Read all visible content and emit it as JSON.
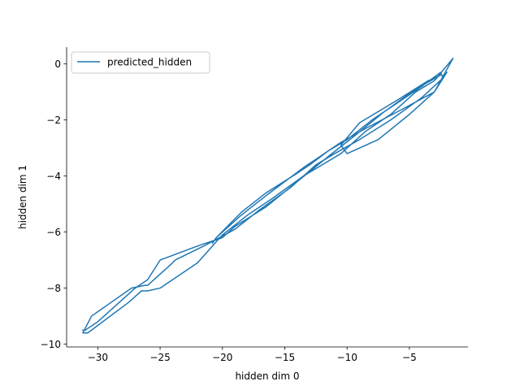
{
  "chart_data": {
    "type": "line",
    "title": "",
    "xlabel": "hidden dim 0",
    "ylabel": "hidden dim 1",
    "xlim": [
      -32.5,
      -0.3
    ],
    "ylim": [
      -10.1,
      0.6
    ],
    "xticks": [
      -30,
      -25,
      -20,
      -15,
      -10,
      -5
    ],
    "xtick_labels": [
      "−30",
      "−25",
      "−20",
      "−15",
      "−10",
      "−5"
    ],
    "yticks": [
      -10,
      -8,
      -6,
      -4,
      -2,
      0
    ],
    "ytick_labels": [
      "−10",
      "−8",
      "−6",
      "−4",
      "−2",
      "0"
    ],
    "grid": false,
    "legend_position": "upper-left",
    "series": [
      {
        "name": "predicted_hidden",
        "color": "#1f77b4",
        "x": [
          -2.0,
          -3.0,
          -5.5,
          -8.5,
          -10.5,
          -13.5,
          -16.5,
          -18.5,
          -20.5,
          -20.8,
          -20.5,
          -18.5,
          -16.5,
          -14.0,
          -13.0,
          -11.5,
          -10.0,
          -8.0,
          -6.0,
          -4.0,
          -2.5,
          -2.3,
          -4.0,
          -6.5,
          -9.0,
          -11.0,
          -12.5,
          -14.5,
          -17.0,
          -19.0,
          -21.5,
          -23.8,
          -24.0,
          -26.0,
          -26.2,
          -27.3,
          -30.5,
          -31.2,
          -30.8,
          -27.5,
          -26.5,
          -26.0,
          -25.0,
          -22.0,
          -20.0,
          -18.0,
          -16.0,
          -13.5,
          -12.0,
          -10.5,
          -8.5,
          -6.5,
          -4.5,
          -3.0,
          -1.5,
          -3.0,
          -5.0,
          -7.5,
          -10.0,
          -10.5,
          -9.0,
          -6.0,
          -3.5,
          -2.5,
          -4.5,
          -7.0,
          -9.5,
          -11.5,
          -14.0,
          -16.5,
          -19.0,
          -20.0,
          -22.0,
          -25.0,
          -26.0,
          -27.0,
          -30.0,
          -31.0,
          -31.2
        ],
        "y": [
          -0.3,
          -1.0,
          -1.6,
          -2.3,
          -2.8,
          -3.7,
          -4.7,
          -5.4,
          -6.2,
          -6.4,
          -6.2,
          -5.3,
          -4.6,
          -3.9,
          -3.6,
          -3.1,
          -2.7,
          -2.0,
          -1.4,
          -0.8,
          -0.3,
          -0.5,
          -1.2,
          -2.0,
          -2.7,
          -3.2,
          -3.6,
          -4.4,
          -5.2,
          -5.9,
          -6.5,
          -7.0,
          -7.1,
          -7.9,
          -7.9,
          -8.0,
          -9.0,
          -9.6,
          -9.6,
          -8.5,
          -8.1,
          -8.1,
          -8.0,
          -7.1,
          -6.1,
          -5.4,
          -4.8,
          -4.0,
          -3.6,
          -3.2,
          -2.4,
          -1.8,
          -1.0,
          -0.6,
          0.2,
          -1.0,
          -1.8,
          -2.7,
          -3.2,
          -2.9,
          -2.1,
          -1.3,
          -0.6,
          -0.4,
          -0.9,
          -1.7,
          -2.6,
          -3.3,
          -4.2,
          -5.1,
          -5.8,
          -6.2,
          -6.5,
          -7.0,
          -7.7,
          -8.0,
          -9.2,
          -9.5,
          -9.5
        ]
      }
    ]
  }
}
